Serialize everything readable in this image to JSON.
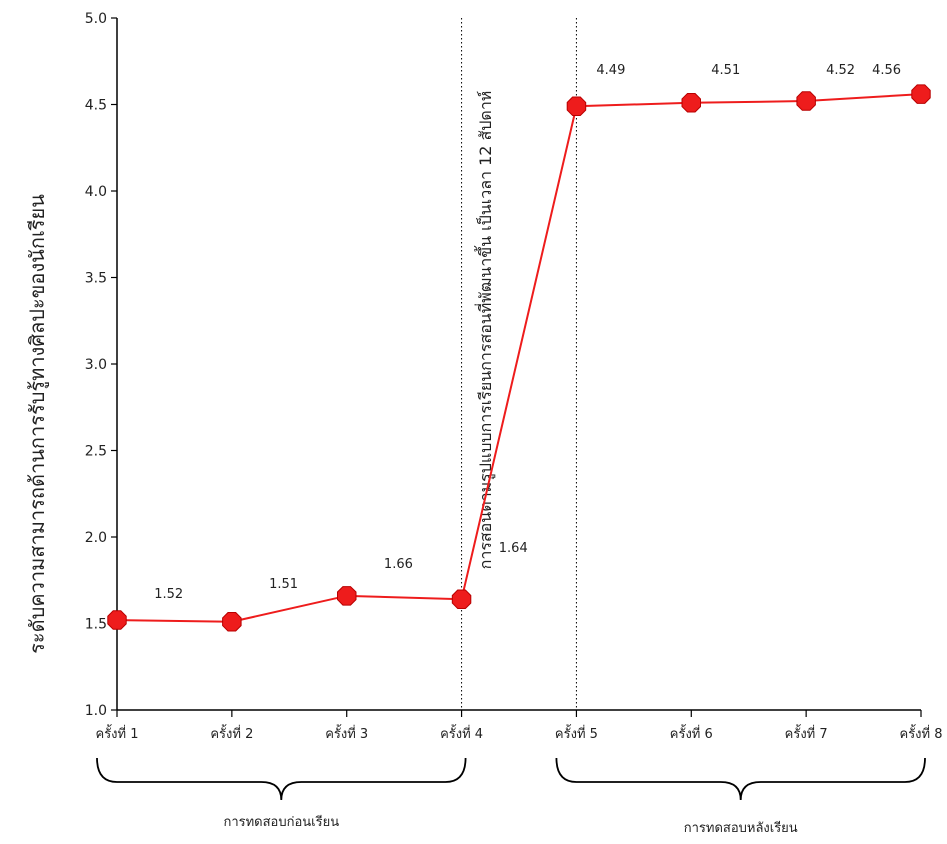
{
  "chart_data": {
    "type": "line",
    "title": "",
    "xlabel": "",
    "ylabel": "ระดับความสามารถด้านการรับรู้ทางศิลปะของนักเรียน",
    "categories": [
      "ครั้งที่ 1",
      "ครั้งที่ 2",
      "ครั้งที่ 3",
      "ครั้งที่ 4",
      "ครั้งที่ 5",
      "ครั้งที่ 6",
      "ครั้งที่ 7",
      "ครั้งที่ 8"
    ],
    "values": [
      1.52,
      1.51,
      1.66,
      1.64,
      4.49,
      4.51,
      4.52,
      4.56
    ],
    "data_labels": [
      "1.52",
      "1.51",
      "1.66",
      "1.64",
      "4.49",
      "4.51",
      "4.52",
      "4.56"
    ],
    "ylim": [
      1.0,
      5.0
    ],
    "yticks": [
      1.0,
      1.5,
      2.0,
      2.5,
      3.0,
      3.5,
      4.0,
      4.5,
      5.0
    ],
    "ytick_labels": [
      "1.0",
      "1.5",
      "2.0",
      "2.5",
      "3.0",
      "3.5",
      "4.0",
      "4.5",
      "5.0"
    ],
    "grid": false,
    "legend": "none",
    "line_color": "#ee1c1c",
    "marker_color": "#ee1c1c",
    "divider_positions": [
      3,
      4
    ],
    "annotation_text": "การสอนตามรูปแบบการเรียนการสอนที่พัฒนาขึ้น เป็นเวลา 12 สัปดาห์",
    "groups": [
      {
        "label": "การทดสอบก่อนเรียน",
        "from": 0,
        "to": 3
      },
      {
        "label": "การทดสอบหลังเรียน",
        "from": 4,
        "to": 7
      }
    ]
  }
}
